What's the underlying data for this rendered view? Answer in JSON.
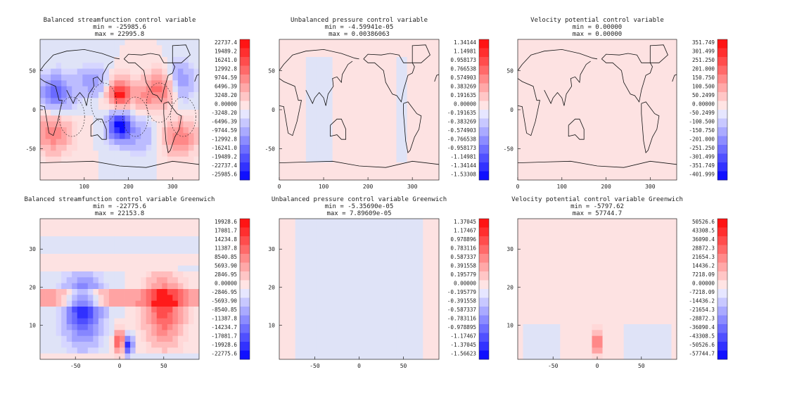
{
  "chart_data": [
    {
      "type": "heatmap",
      "title": "Balanced streamfunction control variable",
      "min_label": "min =",
      "min_value": "-25985.6",
      "max_label": "max =",
      "max_value": "22995.8",
      "xticks": [
        "100",
        "200",
        "300"
      ],
      "yticks": [
        "50",
        "0",
        "-50"
      ],
      "colorbar_labels": [
        "22737.4",
        "19489.2",
        "16241.0",
        "12992.8",
        "9744.59",
        "6496.39",
        "3248.20",
        "0.00000",
        "-3248.20",
        "-6496.39",
        "-9744.59",
        "-12992.8",
        "-16241.0",
        "-19489.2",
        "-22737.4",
        "-25985.6"
      ],
      "x_range": [
        0,
        360
      ],
      "y_range": [
        -90,
        90
      ],
      "coastlines": true
    },
    {
      "type": "heatmap",
      "title": "Unbalanced pressure control variable",
      "min_label": "min =",
      "min_value": "-4.59941e-05",
      "max_label": "max =",
      "max_value": "0.00386063",
      "xticks": [
        "0",
        "100",
        "200",
        "300"
      ],
      "yticks": [
        "50",
        "0",
        "-50"
      ],
      "colorbar_labels": [
        "1.34144",
        "1.14981",
        "0.958173",
        "0.766538",
        "0.574903",
        "0.383269",
        "0.191635",
        "0.00000",
        "-0.191635",
        "-0.383269",
        "-0.574903",
        "-0.766538",
        "-0.958173",
        "-1.14981",
        "-1.34144",
        "-1.53308"
      ],
      "x_range": [
        0,
        360
      ],
      "y_range": [
        -90,
        90
      ],
      "coastlines": true
    },
    {
      "type": "heatmap",
      "title": "Velocity potential control variable",
      "min_label": "min =",
      "min_value": "0.00000",
      "max_label": "max =",
      "max_value": "0.00000",
      "xticks": [
        "0",
        "100",
        "200",
        "300"
      ],
      "yticks": [
        "50",
        "0",
        "-50"
      ],
      "colorbar_labels": [
        "351.749",
        "301.499",
        "251.250",
        "201.000",
        "150.750",
        "100.500",
        "50.2499",
        "0.00000",
        "-50.2499",
        "-100.500",
        "-150.750",
        "-201.000",
        "-251.250",
        "-301.499",
        "-351.749",
        "-401.999"
      ],
      "x_range": [
        0,
        360
      ],
      "y_range": [
        -90,
        90
      ],
      "coastlines": true
    },
    {
      "type": "heatmap",
      "title": "Balanced streamfunction control variable Greenwich",
      "min_label": "min =",
      "min_value": "-22775.6",
      "max_label": "max =",
      "max_value": "22153.8",
      "xticks": [
        "-50",
        "0",
        "50"
      ],
      "yticks": [
        "30",
        "20",
        "10"
      ],
      "colorbar_labels": [
        "19928.6",
        "17081.7",
        "14234.8",
        "11387.8",
        "8540.85",
        "5693.90",
        "2846.95",
        "0.00000",
        "-2846.95",
        "-5693.90",
        "-8540.85",
        "-11387.8",
        "-14234.7",
        "-17081.7",
        "-19928.6",
        "-22775.6"
      ],
      "x_range": [
        -90,
        90
      ],
      "y_range": [
        1,
        38
      ],
      "coastlines": false
    },
    {
      "type": "heatmap",
      "title": "Unbalanced pressure control variable Greenwich",
      "min_label": "min =",
      "min_value": "-5.35690e-05",
      "max_label": "max =",
      "max_value": "7.89609e-05",
      "xticks": [
        "-50",
        "0",
        "50"
      ],
      "yticks": [
        "30",
        "20",
        "10"
      ],
      "colorbar_labels": [
        "1.37045",
        "1.17467",
        "0.978896",
        "0.783116",
        "0.587337",
        "0.391558",
        "0.195779",
        "0.00000",
        "-0.195779",
        "-0.391558",
        "-0.587337",
        "-0.783116",
        "-0.978895",
        "-1.17467",
        "-1.37045",
        "-1.56623"
      ],
      "x_range": [
        -90,
        90
      ],
      "y_range": [
        1,
        38
      ],
      "coastlines": false
    },
    {
      "type": "heatmap",
      "title": "Velocity potential control variable Greenwich",
      "min_label": "min =",
      "min_value": "-5797.62",
      "max_label": "max =",
      "max_value": "57744.7",
      "xticks": [
        "-50",
        "0",
        "50"
      ],
      "yticks": [
        "30",
        "20",
        "10"
      ],
      "colorbar_labels": [
        "50526.6",
        "43308.5",
        "36090.4",
        "28872.3",
        "21654.3",
        "14436.2",
        "7218.09",
        "0.00000",
        "-7218.09",
        "-14436.2",
        "-21654.3",
        "-28872.3",
        "-36090.4",
        "-43308.5",
        "-50526.6",
        "-57744.7"
      ],
      "x_range": [
        -90,
        90
      ],
      "y_range": [
        1,
        38
      ],
      "coastlines": false
    }
  ],
  "colors": {
    "pos_scale": [
      "#ff1a1a",
      "#ff4d4d",
      "#ff6b6b",
      "#ff8888",
      "#ffa3a3",
      "#ffbdbd",
      "#ffd8d8"
    ],
    "neg_scale": [
      "#d6d6ff",
      "#bcbcff",
      "#a0a0ff",
      "#8686ff",
      "#6a6aff",
      "#4e4eff",
      "#3030ff",
      "#0a0aff"
    ],
    "weak_pos": "#fde2e2",
    "weak_neg": "#dfe3f7",
    "strong_pos": "#f03030",
    "strong_neg": "#3434e8"
  }
}
